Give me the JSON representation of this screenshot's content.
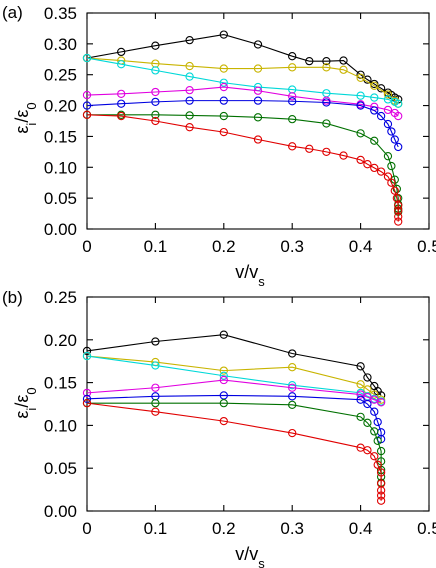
{
  "chart_data": [
    {
      "type": "line",
      "panel_label": "(a)",
      "xlabel": "v/v",
      "xlabel_sub": "s",
      "ylabel": "ε",
      "ylabel_sub1": "i",
      "ylabel_mid": "/ε",
      "ylabel_sub2": "0",
      "xlim": [
        0,
        0.5
      ],
      "ylim": [
        0,
        0.35
      ],
      "xticks": [
        "0",
        "0.1",
        "0.2",
        "0.3",
        "0.4",
        "0.5"
      ],
      "yticks": [
        "0.00",
        "0.05",
        "0.10",
        "0.15",
        "0.20",
        "0.25",
        "0.30",
        "0.35"
      ],
      "grid": false,
      "series": [
        {
          "color": "#000000",
          "x": [
            0,
            0.05,
            0.1,
            0.15,
            0.2,
            0.25,
            0.3,
            0.325,
            0.35,
            0.375,
            0.4,
            0.41,
            0.42,
            0.43,
            0.44,
            0.445,
            0.45,
            0.455
          ],
          "y": [
            0.277,
            0.287,
            0.297,
            0.306,
            0.315,
            0.299,
            0.28,
            0.272,
            0.272,
            0.273,
            0.25,
            0.242,
            0.235,
            0.228,
            0.221,
            0.217,
            0.213,
            0.21
          ]
        },
        {
          "color": "#c8b400",
          "x": [
            0,
            0.05,
            0.1,
            0.15,
            0.2,
            0.25,
            0.3,
            0.35,
            0.375,
            0.4,
            0.42,
            0.44,
            0.45,
            0.455
          ],
          "y": [
            0.277,
            0.273,
            0.268,
            0.264,
            0.26,
            0.26,
            0.262,
            0.262,
            0.258,
            0.245,
            0.232,
            0.218,
            0.208,
            0.203
          ]
        },
        {
          "color": "#00d8d8",
          "x": [
            0,
            0.05,
            0.1,
            0.15,
            0.2,
            0.25,
            0.3,
            0.35,
            0.4,
            0.42,
            0.44,
            0.45,
            0.455
          ],
          "y": [
            0.277,
            0.267,
            0.257,
            0.247,
            0.237,
            0.23,
            0.226,
            0.22,
            0.216,
            0.213,
            0.21,
            0.206,
            0.203
          ]
        },
        {
          "color": "#e000e0",
          "x": [
            0,
            0.05,
            0.1,
            0.15,
            0.2,
            0.25,
            0.3,
            0.35,
            0.4,
            0.42,
            0.44,
            0.45,
            0.455
          ],
          "y": [
            0.217,
            0.219,
            0.222,
            0.225,
            0.23,
            0.224,
            0.215,
            0.208,
            0.202,
            0.198,
            0.193,
            0.188,
            0.183
          ]
        },
        {
          "color": "#0000e0",
          "x": [
            0,
            0.05,
            0.1,
            0.15,
            0.2,
            0.25,
            0.3,
            0.35,
            0.4,
            0.42,
            0.43,
            0.44,
            0.445,
            0.45,
            0.455
          ],
          "y": [
            0.2,
            0.203,
            0.206,
            0.208,
            0.208,
            0.208,
            0.207,
            0.205,
            0.2,
            0.192,
            0.183,
            0.17,
            0.158,
            0.145,
            0.133
          ]
        },
        {
          "color": "#007000",
          "x": [
            0,
            0.05,
            0.1,
            0.15,
            0.2,
            0.25,
            0.3,
            0.35,
            0.4,
            0.42,
            0.44,
            0.445,
            0.45,
            0.453,
            0.455,
            0.455,
            0.455,
            0.455
          ],
          "y": [
            0.185,
            0.185,
            0.185,
            0.184,
            0.183,
            0.181,
            0.178,
            0.171,
            0.155,
            0.143,
            0.118,
            0.102,
            0.08,
            0.065,
            0.05,
            0.04,
            0.033,
            0.028
          ]
        },
        {
          "color": "#e00000",
          "x": [
            0,
            0.05,
            0.1,
            0.15,
            0.2,
            0.25,
            0.3,
            0.325,
            0.35,
            0.375,
            0.4,
            0.41,
            0.42,
            0.43,
            0.44,
            0.445,
            0.45,
            0.453,
            0.455,
            0.455,
            0.455,
            0.455
          ],
          "y": [
            0.185,
            0.183,
            0.175,
            0.165,
            0.157,
            0.145,
            0.134,
            0.13,
            0.125,
            0.119,
            0.112,
            0.105,
            0.099,
            0.093,
            0.085,
            0.075,
            0.062,
            0.05,
            0.038,
            0.03,
            0.02,
            0.012
          ]
        }
      ]
    },
    {
      "type": "line",
      "panel_label": "(b)",
      "xlabel": "v/v",
      "xlabel_sub": "s",
      "ylabel": "ε",
      "ylabel_sub1": "i",
      "ylabel_mid": "/ε",
      "ylabel_sub2": "0",
      "xlim": [
        0,
        0.5
      ],
      "ylim": [
        0,
        0.25
      ],
      "xticks": [
        "0",
        "0.1",
        "0.2",
        "0.3",
        "0.4",
        "0.5"
      ],
      "yticks": [
        "0.00",
        "0.05",
        "0.10",
        "0.15",
        "0.20",
        "0.25"
      ],
      "grid": false,
      "series": [
        {
          "color": "#000000",
          "x": [
            0,
            0.1,
            0.2,
            0.3,
            0.4,
            0.41,
            0.42,
            0.425,
            0.43
          ],
          "y": [
            0.187,
            0.198,
            0.206,
            0.184,
            0.169,
            0.156,
            0.146,
            0.14,
            0.135
          ]
        },
        {
          "color": "#c8b400",
          "x": [
            0,
            0.1,
            0.2,
            0.3,
            0.4,
            0.41,
            0.42,
            0.43
          ],
          "y": [
            0.181,
            0.174,
            0.164,
            0.168,
            0.148,
            0.142,
            0.136,
            0.13
          ]
        },
        {
          "color": "#00d8d8",
          "x": [
            0,
            0.1,
            0.2,
            0.3,
            0.4,
            0.41,
            0.42,
            0.43
          ],
          "y": [
            0.181,
            0.17,
            0.158,
            0.147,
            0.138,
            0.134,
            0.131,
            0.128
          ]
        },
        {
          "color": "#e000e0",
          "x": [
            0,
            0.1,
            0.2,
            0.3,
            0.4,
            0.41,
            0.42,
            0.43
          ],
          "y": [
            0.138,
            0.144,
            0.153,
            0.144,
            0.136,
            0.133,
            0.13,
            0.127
          ]
        },
        {
          "color": "#0000e0",
          "x": [
            0,
            0.1,
            0.2,
            0.3,
            0.4,
            0.41,
            0.42,
            0.425,
            0.43,
            0.43
          ],
          "y": [
            0.131,
            0.134,
            0.135,
            0.134,
            0.13,
            0.125,
            0.116,
            0.104,
            0.092,
            0.084
          ]
        },
        {
          "color": "#007000",
          "x": [
            0,
            0.1,
            0.2,
            0.3,
            0.4,
            0.41,
            0.42,
            0.425,
            0.43,
            0.43,
            0.43,
            0.43,
            0.43
          ],
          "y": [
            0.126,
            0.126,
            0.126,
            0.124,
            0.11,
            0.103,
            0.093,
            0.082,
            0.07,
            0.058,
            0.048,
            0.04,
            0.033
          ]
        },
        {
          "color": "#e00000",
          "x": [
            0,
            0.1,
            0.2,
            0.3,
            0.4,
            0.41,
            0.42,
            0.425,
            0.43,
            0.43,
            0.43,
            0.43,
            0.43
          ],
          "y": [
            0.126,
            0.116,
            0.105,
            0.091,
            0.074,
            0.071,
            0.064,
            0.054,
            0.045,
            0.032,
            0.024,
            0.018,
            0.012
          ]
        }
      ]
    }
  ]
}
